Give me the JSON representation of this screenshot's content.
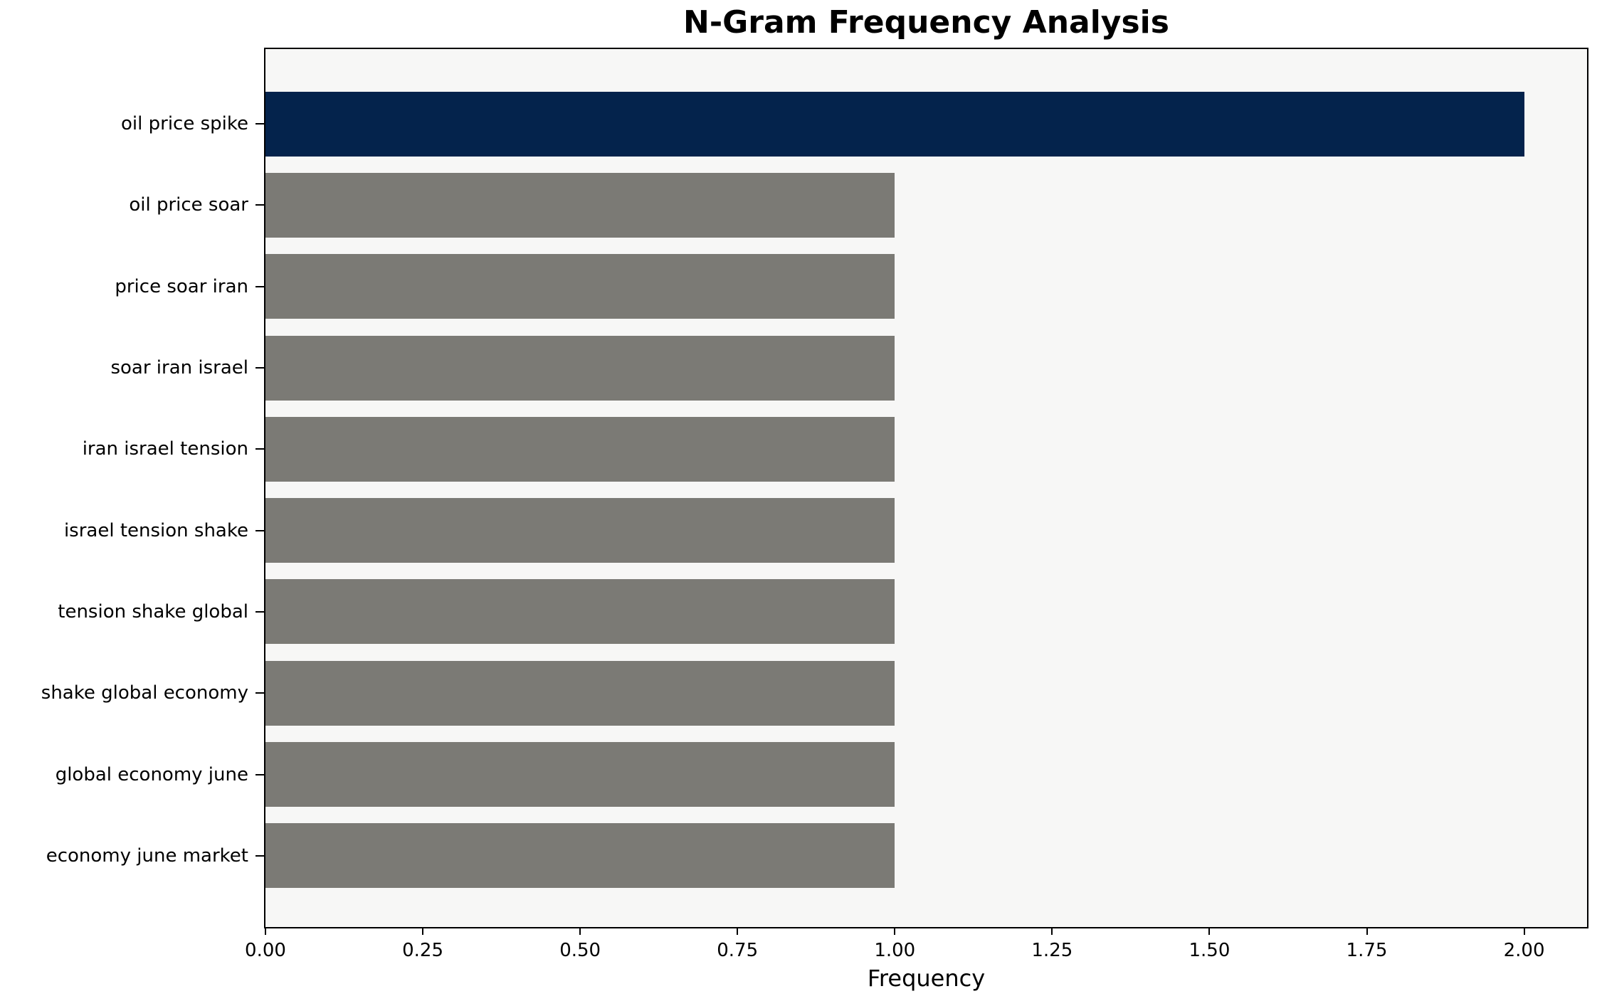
{
  "chart": {
    "title": "N-Gram Frequency Analysis",
    "xlabel": "Frequency"
  },
  "chart_data": {
    "type": "bar",
    "orientation": "horizontal",
    "title": "N-Gram Frequency Analysis",
    "xlabel": "Frequency",
    "ylabel": "",
    "categories": [
      "oil price spike",
      "oil price soar",
      "price soar iran",
      "soar iran israel",
      "iran israel tension",
      "israel tension shake",
      "tension shake global",
      "shake global economy",
      "global economy june",
      "economy june market"
    ],
    "values": [
      2,
      1,
      1,
      1,
      1,
      1,
      1,
      1,
      1,
      1
    ],
    "bar_colors": [
      "#04234c",
      "#7b7a75",
      "#7b7a75",
      "#7b7a75",
      "#7b7a75",
      "#7b7a75",
      "#7b7a75",
      "#7b7a75",
      "#7b7a75",
      "#7b7a75"
    ],
    "xlim": [
      0,
      2.1
    ],
    "xticks": [
      0.0,
      0.25,
      0.5,
      0.75,
      1.0,
      1.25,
      1.5,
      1.75,
      2.0
    ],
    "xtick_labels": [
      "0.00",
      "0.25",
      "0.50",
      "0.75",
      "1.00",
      "1.25",
      "1.50",
      "1.75",
      "2.00"
    ],
    "grid": false,
    "legend": null,
    "colors": {
      "highlight_bar": "#04234c",
      "default_bar": "#7b7a75",
      "plot_background": "#f7f7f6",
      "figure_background": "#ffffff",
      "axis": "#000000",
      "text": "#000000"
    }
  }
}
